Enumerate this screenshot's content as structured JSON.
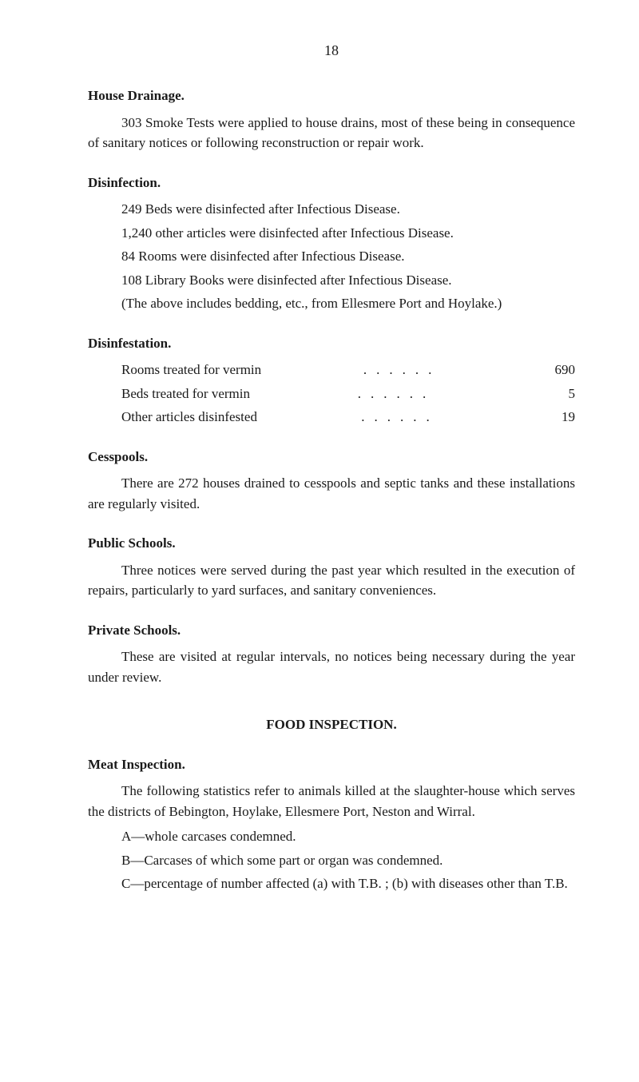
{
  "page_number": "18",
  "sections": {
    "house_drainage": {
      "heading": "House Drainage.",
      "text": "303 Smoke Tests were applied to house drains, most of these being in consequence of sanitary notices or following reconstruction or repair work."
    },
    "disinfection": {
      "heading": "Disinfection.",
      "lines": [
        "249 Beds were disinfected after Infectious Disease.",
        "1,240 other articles were disinfected after Infectious Disease.",
        "84 Rooms were disinfected after Infectious Disease.",
        "108 Library Books were disinfected after Infectious Disease."
      ],
      "note": "(The above includes bedding, etc., from Ellesmere Port and Hoylake.)"
    },
    "disinfestation": {
      "heading": "Disinfestation.",
      "rows": [
        {
          "label": "Rooms treated for vermin",
          "value": "690"
        },
        {
          "label": "Beds treated for vermin",
          "value": "5"
        },
        {
          "label": "Other articles disinfested",
          "value": "19"
        }
      ]
    },
    "cesspools": {
      "heading": "Cesspools.",
      "text": "There are 272 houses drained to cesspools and septic tanks and these installations are regularly visited."
    },
    "public_schools": {
      "heading": "Public Schools.",
      "text": "Three notices were served during the past year which resulted in the execution of repairs, particularly to yard surfaces, and sanitary conveniences."
    },
    "private_schools": {
      "heading": "Private Schools.",
      "text": "These are visited at regular intervals, no notices being necessary during the year under review."
    },
    "food_inspection": {
      "heading": "FOOD INSPECTION."
    },
    "meat_inspection": {
      "heading": "Meat Inspection.",
      "text": "The following statistics refer to animals killed at the slaughter-house which serves the districts of Bebington, Hoylake, Ellesmere Port, Neston and Wirral.",
      "items": [
        "A—whole carcases condemned.",
        "B—Carcases of which some part or organ was condemned.",
        "C—percentage of number affected (a) with T.B. ; (b) with diseases other than T.B."
      ]
    }
  }
}
